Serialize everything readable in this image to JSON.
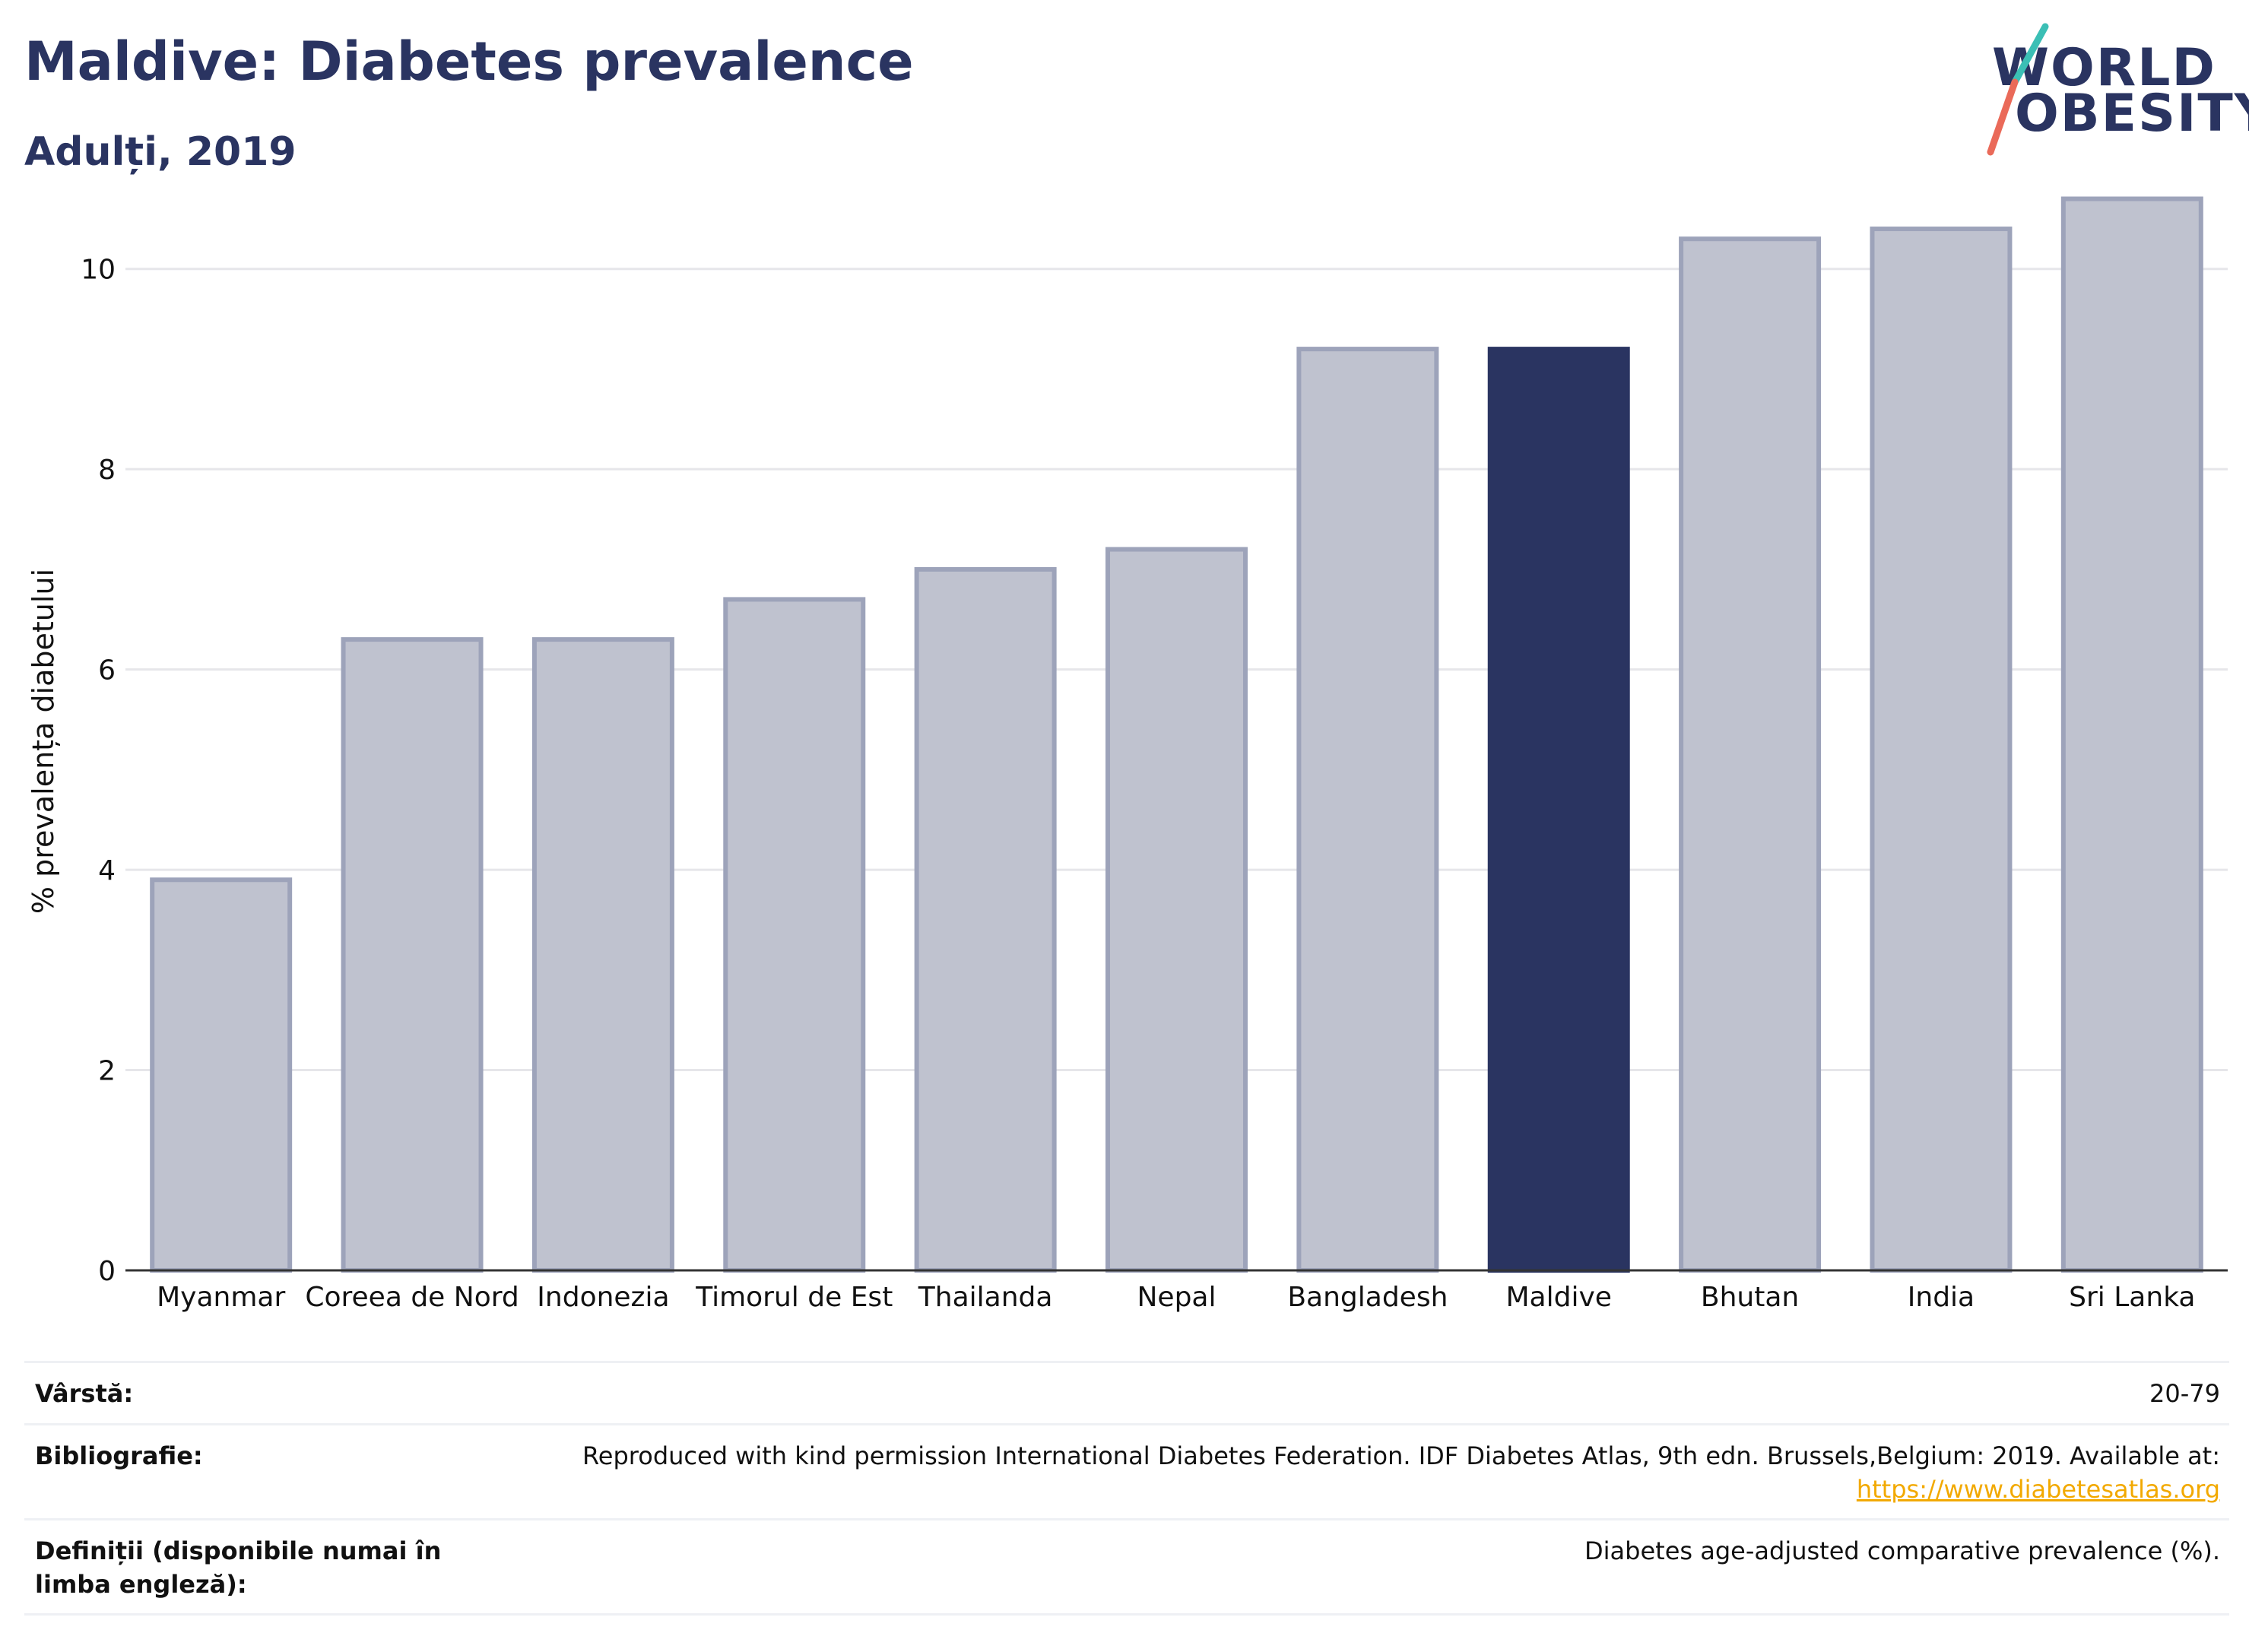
{
  "header": {
    "title": "Maldive: Diabetes prevalence",
    "subtitle": "Adulți, 2019"
  },
  "logo": {
    "line1": "WORLD",
    "line2": "OBESITY"
  },
  "colors": {
    "highlight": "#2a3461",
    "bar": "#bfc2cf",
    "bar_stroke": "#9da3ba",
    "grid": "#e6e6ea",
    "accent_link": "#f2a900"
  },
  "chart_data": {
    "type": "bar",
    "ylabel": "% prevalența diabetului",
    "xlabel": "",
    "ylim": [
      0,
      11
    ],
    "yticks": [
      0,
      2,
      4,
      6,
      8,
      10
    ],
    "grid": true,
    "highlight": "Maldive",
    "categories": [
      "Myanmar",
      "Coreea de Nord",
      "Indonezia",
      "Timorul de Est",
      "Thailanda",
      "Nepal",
      "Bangladesh",
      "Maldive",
      "Bhutan",
      "India",
      "Sri Lanka"
    ],
    "values": [
      3.9,
      6.3,
      6.3,
      6.7,
      7.0,
      7.2,
      9.2,
      9.2,
      10.3,
      10.4,
      10.7
    ]
  },
  "info": {
    "age_label": "Vârstă:",
    "age_value": "20-79",
    "bib_label": "Bibliografie:",
    "bib_value": "Reproduced with kind permission International Diabetes Federation. IDF Diabetes Atlas, 9th edn. Brussels,Belgium: 2019. Available at:",
    "bib_link": "https://www.diabetesatlas.org",
    "def_label": "Definiții (disponibile numai în limba engleză):",
    "def_value": "Diabetes age-adjusted comparative prevalence (%)."
  }
}
